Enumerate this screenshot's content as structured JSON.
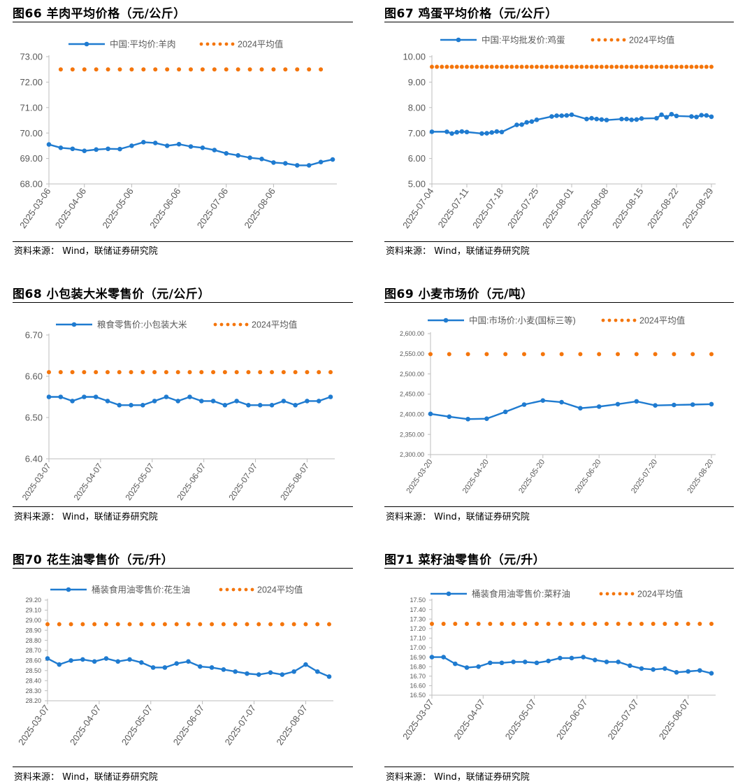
{
  "colors": {
    "line": "#1f7bd0",
    "avg": "#f4750c",
    "axis": "#bdbdbd",
    "tick": "#595959"
  },
  "charts": [
    {
      "title": "图66 羊肉平均价格（元/公斤）",
      "source": "资料来源： Wind，联储证券研究院",
      "legend_series": "中国:平均价:羊肉",
      "legend_avg": "2024平均值",
      "chart_data": {
        "type": "line",
        "ylim": [
          68,
          73
        ],
        "ystep": 1,
        "ydecimals": 2,
        "xticks": [
          "2025-03-06",
          "2025-04-06",
          "2025-05-06",
          "2025-06-06",
          "2025-07-06",
          "2025-08-06"
        ],
        "xtick_pos": [
          0,
          3,
          7,
          11,
          15,
          19
        ],
        "series": [
          {
            "name": "中国:平均价:羊肉",
            "values": [
              69.55,
              69.42,
              69.38,
              69.3,
              69.35,
              69.38,
              69.37,
              69.5,
              69.64,
              69.61,
              69.5,
              69.56,
              69.47,
              69.42,
              69.33,
              69.2,
              69.12,
              69.03,
              68.98,
              68.84,
              68.81,
              68.73,
              68.73,
              68.86,
              68.96
            ]
          }
        ],
        "avg": 72.5,
        "avg_from": 1,
        "avg_to": 23,
        "n": 25
      }
    },
    {
      "title": "图67 鸡蛋平均价格（元/公斤）",
      "source": "资料来源： Wind，联储证券研究院",
      "legend_series": "中国:平均批发价:鸡蛋",
      "legend_avg": "2024平均值",
      "chart_data": {
        "type": "line",
        "ylim": [
          5,
          10
        ],
        "ystep": 1,
        "ydecimals": 2,
        "xticks": [
          "2025-07-04",
          "2025-07-11",
          "2025-07-18",
          "2025-07-25",
          "2025-08-01",
          "2025-08-08",
          "2025-08-15",
          "2025-08-22",
          "2025-08-29"
        ],
        "xtick_pos": [
          0,
          7,
          14,
          21,
          28,
          35,
          42,
          49,
          56
        ],
        "points": [
          [
            0,
            7.05
          ],
          [
            3,
            7.05
          ],
          [
            4,
            6.98
          ],
          [
            5,
            7.03
          ],
          [
            6,
            7.06
          ],
          [
            7,
            7.04
          ],
          [
            10,
            6.98
          ],
          [
            11,
            6.99
          ],
          [
            12,
            7.02
          ],
          [
            13,
            7.06
          ],
          [
            14,
            7.04
          ],
          [
            17,
            7.32
          ],
          [
            18,
            7.33
          ],
          [
            19,
            7.42
          ],
          [
            20,
            7.45
          ],
          [
            21,
            7.52
          ],
          [
            24,
            7.65
          ],
          [
            25,
            7.68
          ],
          [
            26,
            7.68
          ],
          [
            27,
            7.69
          ],
          [
            28,
            7.72
          ],
          [
            31,
            7.55
          ],
          [
            32,
            7.58
          ],
          [
            33,
            7.55
          ],
          [
            34,
            7.53
          ],
          [
            35,
            7.51
          ],
          [
            38,
            7.55
          ],
          [
            39,
            7.55
          ],
          [
            40,
            7.52
          ],
          [
            41,
            7.53
          ],
          [
            42,
            7.57
          ],
          [
            45,
            7.58
          ],
          [
            46,
            7.72
          ],
          [
            47,
            7.62
          ],
          [
            48,
            7.74
          ],
          [
            49,
            7.67
          ],
          [
            52,
            7.65
          ],
          [
            53,
            7.63
          ],
          [
            54,
            7.7
          ],
          [
            55,
            7.69
          ],
          [
            56,
            7.64
          ]
        ],
        "avg": 9.6,
        "avg_from": 0,
        "avg_to": 56,
        "n": 57
      }
    },
    {
      "title": "图68 小包装大米零售价（元/公斤）",
      "source": "资料来源： Wind，联储证券研究院",
      "legend_series": "粮食零售价:小包装大米",
      "legend_avg": "2024平均值",
      "chart_data": {
        "type": "line",
        "ylim": [
          6.4,
          6.7
        ],
        "ystep": 0.1,
        "ydecimals": 2,
        "xticks": [
          "2025-03-07",
          "2025-04-07",
          "2025-05-07",
          "2025-06-07",
          "2025-07-07",
          "2025-08-07"
        ],
        "xtick_pos": [
          0,
          4.4,
          8.8,
          13.2,
          17.6,
          22
        ],
        "series": [
          {
            "name": "粮食零售价:小包装大米",
            "values": [
              6.55,
              6.55,
              6.54,
              6.55,
              6.55,
              6.54,
              6.53,
              6.53,
              6.53,
              6.54,
              6.55,
              6.54,
              6.55,
              6.54,
              6.54,
              6.53,
              6.54,
              6.53,
              6.53,
              6.53,
              6.54,
              6.53,
              6.54,
              6.54,
              6.55
            ]
          }
        ],
        "avg": 6.61,
        "avg_from": 0,
        "avg_to": 24,
        "n": 25
      }
    },
    {
      "title": "图69 小麦市场价（元/吨）",
      "source": "资料来源： Wind，联储证券研究院",
      "legend_series": "中国:市场价:小麦(国标三等)",
      "legend_avg": "2024平均值",
      "chart_data": {
        "type": "line",
        "ylim": [
          2300,
          2600
        ],
        "ystep": 50,
        "ydecimals": 2,
        "thousands": true,
        "xticks": [
          "2025-03-20",
          "2025-04-20",
          "2025-05-20",
          "2025-06-20",
          "2025-07-20",
          "2025-08-20"
        ],
        "xtick_pos": [
          0,
          3,
          6,
          9,
          12,
          15
        ],
        "series": [
          {
            "name": "中国:市场价:小麦(国标三等)",
            "values": [
              2401,
              2394,
              2388,
              2389,
              2406,
              2424,
              2434,
              2430,
              2415,
              2419,
              2425,
              2432,
              2422,
              2423,
              2424,
              2425
            ]
          }
        ],
        "avg": 2549,
        "avg_from": 0,
        "avg_to": 15,
        "n": 16
      }
    },
    {
      "title": "图70 花生油零售价（元/升）",
      "source": "资料来源： Wind，联储证券研究院",
      "legend_series": "桶装食用油零售价:花生油",
      "legend_avg": "2024平均值",
      "chart_data": {
        "type": "line",
        "ylim": [
          28.2,
          29.2
        ],
        "ystep": 0.1,
        "ydecimals": 2,
        "xticks": [
          "2025-03-07",
          "2025-04-07",
          "2025-05-07",
          "2025-06-07",
          "2025-07-07",
          "2025-08-07"
        ],
        "xtick_pos": [
          0,
          4.4,
          8.8,
          13.2,
          17.6,
          22
        ],
        "series": [
          {
            "name": "桶装食用油零售价:花生油",
            "values": [
              28.62,
              28.56,
              28.6,
              28.61,
              28.59,
              28.62,
              28.59,
              28.61,
              28.58,
              28.53,
              28.53,
              28.57,
              28.59,
              28.54,
              28.53,
              28.51,
              28.49,
              28.47,
              28.46,
              28.48,
              28.46,
              28.49,
              28.56,
              28.49,
              28.44
            ]
          }
        ],
        "avg": 28.96,
        "avg_from": 0,
        "avg_to": 24,
        "n": 25
      }
    },
    {
      "title": "图71 菜籽油零售价（元/升）",
      "source": "资料来源： Wind，联储证券研究院",
      "legend_series": "桶装食用油零售价:菜籽油",
      "legend_avg": "2024平均值",
      "chart_data": {
        "type": "line",
        "ylim": [
          16.5,
          17.5
        ],
        "ystep": 0.1,
        "ydecimals": 2,
        "xticks": [
          "2025-03-07",
          "2025-04-07",
          "2025-05-07",
          "2025-06-07",
          "2025-07-07",
          "2025-08-07"
        ],
        "xtick_pos": [
          0,
          4.4,
          8.8,
          13.2,
          17.6,
          22
        ],
        "series": [
          {
            "name": "桶装食用油零售价:菜籽油",
            "values": [
              16.9,
              16.9,
              16.83,
              16.79,
              16.8,
              16.84,
              16.84,
              16.85,
              16.85,
              16.84,
              16.86,
              16.89,
              16.89,
              16.9,
              16.87,
              16.85,
              16.85,
              16.81,
              16.78,
              16.77,
              16.78,
              16.74,
              16.75,
              16.76,
              16.73
            ]
          }
        ],
        "avg": 17.25,
        "avg_from": 0,
        "avg_to": 24,
        "n": 25
      }
    }
  ]
}
